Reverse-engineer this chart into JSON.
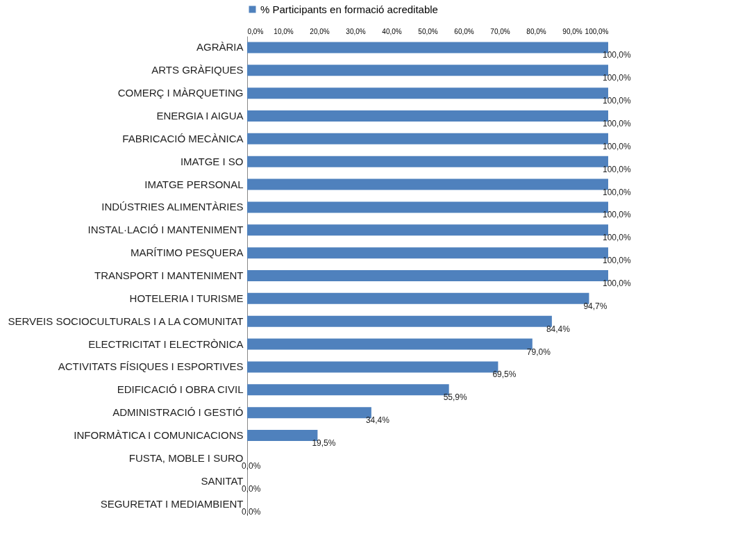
{
  "chart_data": {
    "type": "bar",
    "orientation": "horizontal",
    "legend": "top",
    "grid": false,
    "categories": [
      "AGRÀRIA",
      "ARTS GRÀFIQUES",
      "COMERÇ I MÀRQUETING",
      "ENERGIA I AIGUA",
      "FABRICACIÓ MECÀNICA",
      "IMATGE I SO",
      "IMATGE PERSONAL",
      "INDÚSTRIES ALIMENTÀRIES",
      "INSTAL·LACIÓ I MANTENIMENT",
      "MARÍTIMO PESQUERA",
      "TRANSPORT I MANTENIMENT",
      "HOTELERIA I TURISME",
      "SERVEIS SOCIOCULTURALS I A LA COMUNITAT",
      "ELECTRICITAT I ELECTRÒNICA",
      "ACTIVITATS FÍSIQUES I ESPORTIVES",
      "EDIFICACIÓ I OBRA CIVIL",
      "ADMINISTRACIÓ I GESTIÓ",
      "INFORMÀTICA I COMUNICACIONS",
      "FUSTA, MOBLE I SURO",
      "SANITAT",
      "SEGURETAT I MEDIAMBIENT"
    ],
    "series": [
      {
        "name": "% Participants en formació acreditable",
        "color": "#4f81bd",
        "values": [
          100,
          100,
          100,
          100,
          100,
          100,
          100,
          100,
          100,
          100,
          100,
          94.7,
          84.4,
          79.0,
          69.5,
          55.9,
          34.4,
          19.5,
          0,
          0,
          0
        ],
        "value_labels": [
          "100,0%",
          "100,0%",
          "100,0%",
          "100,0%",
          "100,0%",
          "100,0%",
          "100,0%",
          "100,0%",
          "100,0%",
          "100,0%",
          "100,0%",
          "94,7%",
          "84,4%",
          "79,0%",
          "69,5%",
          "55,9%",
          "34,4%",
          "19,5%",
          "0,0%",
          "0,0%",
          "0,0%"
        ]
      }
    ],
    "xlim": [
      0,
      100
    ],
    "xticks": [
      {
        "value": 0,
        "label": "0,0%"
      },
      {
        "value": 10,
        "label": "10,0%"
      },
      {
        "value": 20,
        "label": "20,0%"
      },
      {
        "value": 30,
        "label": "30,0%"
      },
      {
        "value": 40,
        "label": "40,0%"
      },
      {
        "value": 50,
        "label": "50,0%"
      },
      {
        "value": 60,
        "label": "60,0%"
      },
      {
        "value": 70,
        "label": "70,0%"
      },
      {
        "value": 80,
        "label": "80,0%"
      },
      {
        "value": 90,
        "label": "90,0%"
      },
      {
        "value": 100,
        "label": "100,0%"
      }
    ]
  }
}
